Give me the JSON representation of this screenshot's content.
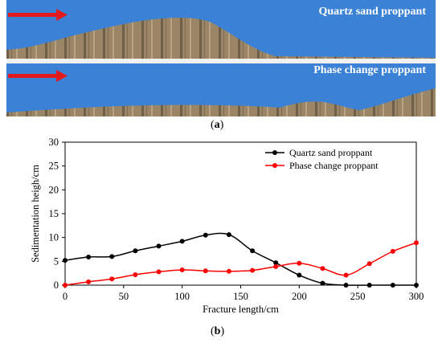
{
  "panel_a": {
    "caption_letter": "a",
    "labels": [
      "Quartz sand proppant",
      "Phase change proppant"
    ],
    "colors": {
      "fluid": "#3b82d6",
      "arrow": "#e31a1c",
      "sand": "#8d7a5e"
    }
  },
  "panel_b": {
    "caption_letter": "b"
  },
  "chart_data": {
    "type": "line",
    "xlabel": "Fracture length/cm",
    "ylabel": "Sedimentation heigh/cm",
    "xlim": [
      0,
      300
    ],
    "ylim": [
      0,
      30
    ],
    "xticks": [
      0,
      50,
      100,
      150,
      200,
      250,
      300
    ],
    "yticks": [
      0,
      5,
      10,
      15,
      20,
      25,
      30
    ],
    "grid": false,
    "legend_position": "top-right",
    "series": [
      {
        "name": "Quartz sand proppant",
        "color": "#000000",
        "x": [
          0,
          20,
          40,
          60,
          80,
          100,
          120,
          140,
          160,
          180,
          200,
          220,
          240,
          260,
          280,
          300
        ],
        "y": [
          5.2,
          5.9,
          6.0,
          7.2,
          8.2,
          9.2,
          10.5,
          10.6,
          7.2,
          4.7,
          2.1,
          0.4,
          0,
          0,
          0,
          0
        ]
      },
      {
        "name": "Phase change proppant",
        "color": "#ff0000",
        "x": [
          0,
          20,
          40,
          60,
          80,
          100,
          120,
          140,
          160,
          180,
          200,
          220,
          240,
          260,
          280,
          300
        ],
        "y": [
          0,
          0.7,
          1.3,
          2.2,
          2.8,
          3.2,
          3.0,
          2.9,
          3.1,
          3.9,
          4.6,
          3.5,
          2.1,
          4.5,
          7.1,
          8.9
        ]
      }
    ]
  }
}
